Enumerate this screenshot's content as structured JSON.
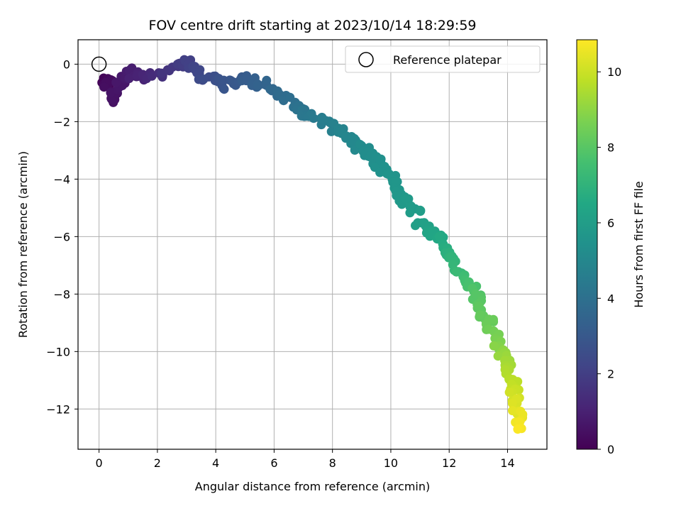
{
  "chart_data": {
    "type": "scatter",
    "title": "FOV centre drift starting at 2023/10/14 18:29:59",
    "xlabel": "Angular distance from reference (arcmin)",
    "ylabel": "Rotation from reference (arcmin)",
    "colorbar_label": "Hours from first FF file",
    "xlim": [
      -0.72,
      15.35
    ],
    "ylim": [
      -13.4,
      0.85
    ],
    "clim": [
      0,
      10.85
    ],
    "colormap": "viridis",
    "grid": true,
    "legend_position": "top-right",
    "x_ticks": [
      0,
      2,
      4,
      6,
      8,
      10,
      12,
      14
    ],
    "x_tick_labels": [
      "0",
      "2",
      "4",
      "6",
      "8",
      "10",
      "12",
      "14"
    ],
    "y_ticks": [
      0,
      -2,
      -4,
      -6,
      -8,
      -10,
      -12
    ],
    "y_tick_labels": [
      "0",
      "−2",
      "−4",
      "−6",
      "−8",
      "−10",
      "−12"
    ],
    "c_ticks": [
      0,
      2,
      4,
      6,
      8,
      10
    ],
    "c_tick_labels": [
      "0",
      "2",
      "4",
      "6",
      "8",
      "10"
    ],
    "reference": {
      "x": 0,
      "y": 0,
      "label": "Reference platepar"
    },
    "anchors": [
      [
        0.1,
        -0.7,
        0.1
      ],
      [
        0.35,
        -0.5,
        0.3
      ],
      [
        0.5,
        -1.3,
        0.5
      ],
      [
        0.8,
        -0.5,
        0.7
      ],
      [
        1.1,
        -0.2,
        0.9
      ],
      [
        1.5,
        -0.5,
        1.1
      ],
      [
        2.5,
        -0.2,
        1.7
      ],
      [
        3.0,
        0.15,
        2.0
      ],
      [
        3.4,
        -0.3,
        2.3
      ],
      [
        4.2,
        -0.7,
        2.8
      ],
      [
        4.8,
        -0.6,
        3.0
      ],
      [
        5.4,
        -0.6,
        3.3
      ],
      [
        6.1,
        -1.0,
        3.7
      ],
      [
        6.9,
        -1.5,
        4.1
      ],
      [
        7.6,
        -1.95,
        4.5
      ],
      [
        8.2,
        -2.3,
        4.8
      ],
      [
        8.7,
        -2.6,
        5.0
      ],
      [
        9.1,
        -3.0,
        5.2
      ],
      [
        9.6,
        -3.5,
        5.4
      ],
      [
        10.1,
        -4.0,
        5.6
      ],
      [
        10.3,
        -4.5,
        5.7
      ],
      [
        10.8,
        -5.0,
        5.9
      ],
      [
        11.3,
        -5.8,
        6.2
      ],
      [
        11.8,
        -6.2,
        6.6
      ],
      [
        12.1,
        -6.8,
        7.0
      ],
      [
        12.5,
        -7.5,
        7.5
      ],
      [
        12.9,
        -8.0,
        7.9
      ],
      [
        13.2,
        -8.7,
        8.2
      ],
      [
        13.5,
        -9.3,
        8.5
      ],
      [
        13.8,
        -10.0,
        9.0
      ],
      [
        14.0,
        -10.5,
        9.4
      ],
      [
        14.2,
        -11.2,
        9.9
      ],
      [
        14.3,
        -12.0,
        10.4
      ],
      [
        14.35,
        -12.7,
        10.8
      ]
    ],
    "seeds": {
      "a": 5,
      "b": 9
    }
  }
}
